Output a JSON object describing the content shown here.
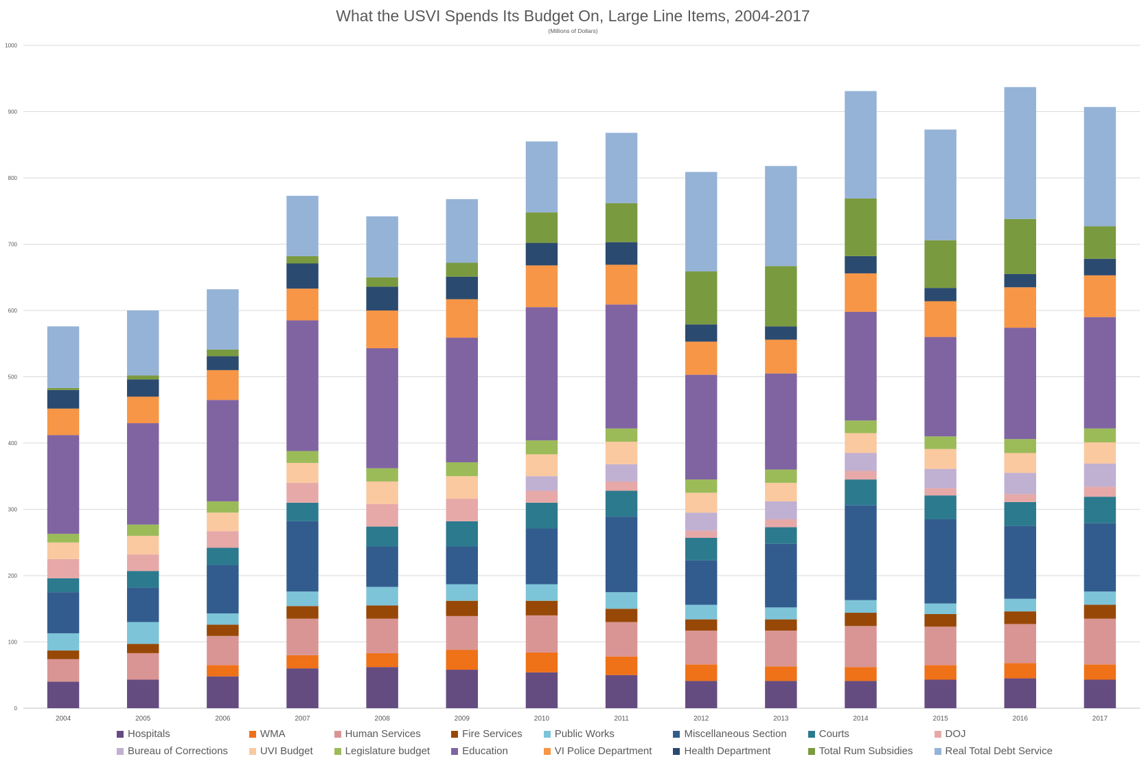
{
  "chart_data": {
    "type": "bar",
    "stacked": true,
    "title": "What the USVI Spends Its Budget On, Large Line Items,  2004-2017",
    "subtitle": "(Millions of Dollars)",
    "xlabel": "",
    "ylabel": "",
    "ylim": [
      0,
      1000
    ],
    "yticks": [
      0,
      100,
      200,
      300,
      400,
      500,
      600,
      700,
      800,
      900,
      1000
    ],
    "grid": true,
    "legend_position": "bottom",
    "categories": [
      "2004",
      "2005",
      "2006",
      "2007",
      "2008",
      "2009",
      "2010",
      "2011",
      "2012",
      "2013",
      "2014",
      "2015",
      "2016",
      "2017"
    ],
    "series": [
      {
        "name": "Hospitals",
        "color": "#654C80",
        "values": [
          40,
          43,
          48,
          60,
          62,
          58,
          54,
          50,
          41,
          41,
          41,
          43,
          45,
          43
        ]
      },
      {
        "name": "WMA",
        "color": "#EF7118",
        "values": [
          0,
          0,
          17,
          20,
          21,
          30,
          30,
          28,
          25,
          22,
          21,
          22,
          23,
          23
        ]
      },
      {
        "name": "Human Services",
        "color": "#D99594",
        "values": [
          34,
          40,
          44,
          55,
          52,
          51,
          56,
          52,
          51,
          54,
          62,
          58,
          59,
          69
        ]
      },
      {
        "name": "Fire Services",
        "color": "#974806",
        "values": [
          13,
          14,
          17,
          19,
          20,
          23,
          22,
          20,
          17,
          17,
          20,
          19,
          19,
          21
        ]
      },
      {
        "name": "Public Works",
        "color": "#7DC4D8",
        "values": [
          26,
          33,
          17,
          22,
          28,
          25,
          25,
          25,
          22,
          18,
          19,
          16,
          19,
          20
        ]
      },
      {
        "name": "Miscellaneous Section",
        "color": "#335C8E",
        "values": [
          62,
          52,
          73,
          106,
          61,
          57,
          84,
          114,
          67,
          96,
          143,
          127,
          110,
          103
        ]
      },
      {
        "name": "Courts",
        "color": "#2C7A8E",
        "values": [
          21,
          25,
          26,
          28,
          30,
          38,
          39,
          39,
          34,
          25,
          39,
          36,
          36,
          40
        ]
      },
      {
        "name": "DOJ",
        "color": "#E6A9A8",
        "values": [
          29,
          25,
          25,
          30,
          34,
          34,
          18,
          14,
          11,
          12,
          13,
          11,
          12,
          15
        ]
      },
      {
        "name": "Bureau of Corrections",
        "color": "#C0B0D2",
        "values": [
          0,
          0,
          0,
          0,
          0,
          0,
          22,
          26,
          27,
          27,
          27,
          29,
          32,
          35
        ]
      },
      {
        "name": "UVI Budget",
        "color": "#FAC9A0",
        "values": [
          25,
          28,
          28,
          30,
          34,
          34,
          33,
          34,
          30,
          28,
          30,
          30,
          30,
          32
        ]
      },
      {
        "name": "Legislature budget",
        "color": "#9BBB59",
        "values": [
          13,
          17,
          17,
          18,
          20,
          21,
          21,
          20,
          20,
          20,
          19,
          19,
          21,
          21
        ]
      },
      {
        "name": "Education",
        "color": "#8064A2",
        "values": [
          149,
          153,
          153,
          197,
          181,
          188,
          201,
          187,
          158,
          145,
          164,
          150,
          168,
          168
        ]
      },
      {
        "name": "VI Police Department",
        "color": "#F79646",
        "values": [
          40,
          40,
          45,
          48,
          57,
          58,
          63,
          60,
          50,
          51,
          58,
          54,
          61,
          63
        ]
      },
      {
        "name": "Health Department",
        "color": "#2B4A6F",
        "values": [
          28,
          26,
          21,
          38,
          36,
          34,
          34,
          34,
          26,
          20,
          26,
          20,
          20,
          25
        ]
      },
      {
        "name": "Total Rum Subsidies",
        "color": "#7A9A3F",
        "values": [
          3,
          6,
          10,
          11,
          14,
          21,
          46,
          59,
          80,
          91,
          87,
          72,
          83,
          49
        ]
      },
      {
        "name": "Real Total Debt Service",
        "color": "#95B3D7",
        "values": [
          93,
          98,
          91,
          91,
          92,
          96,
          107,
          106,
          150,
          151,
          162,
          167,
          199,
          180
        ]
      }
    ]
  }
}
